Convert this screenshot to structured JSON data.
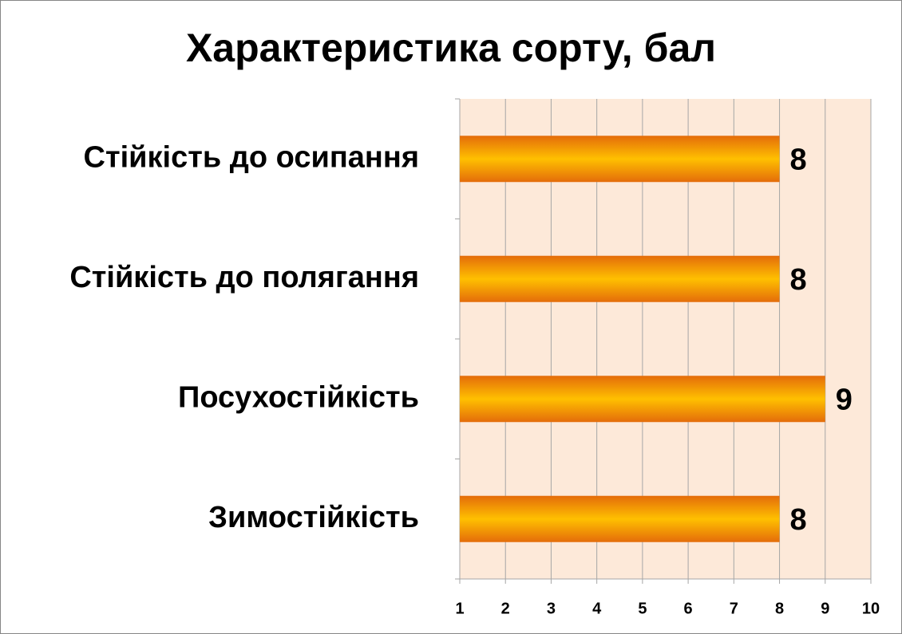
{
  "chart_data": {
    "type": "hbar",
    "title": "Характеристика сорту, бал",
    "categories": [
      "Стійкість до осипання",
      "Стійкість до полягання",
      "Посухостійкість",
      "Зимостійкість"
    ],
    "values": [
      8,
      8,
      9,
      8
    ],
    "color": "#ffc000",
    "xlim": [
      1,
      10
    ],
    "xticks": [
      1,
      2,
      3,
      4,
      5,
      6,
      7,
      8,
      9,
      10
    ],
    "grid": true
  }
}
